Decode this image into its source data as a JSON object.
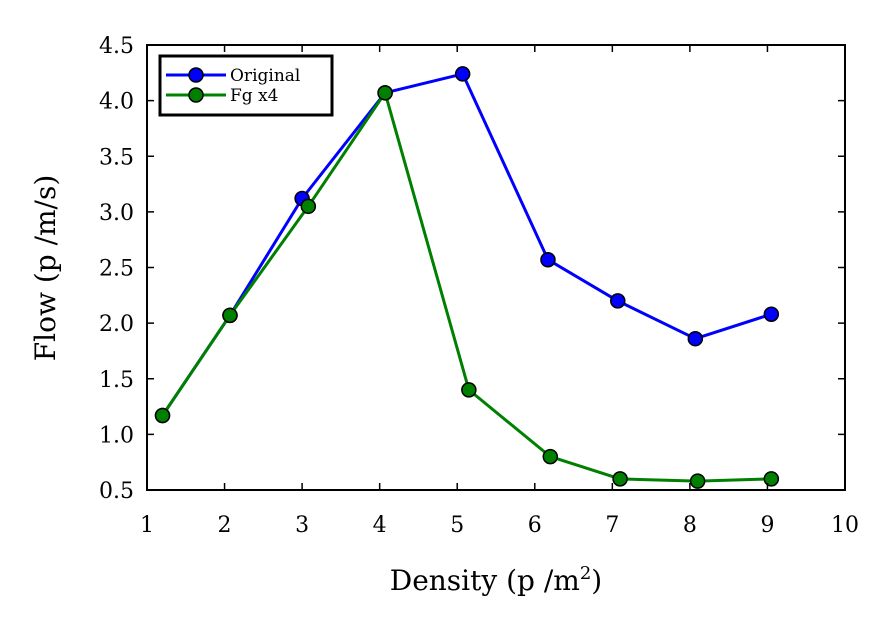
{
  "chart_data": {
    "type": "line",
    "title": "",
    "xlabel": "Density (p /m",
    "xlabel_sup": "2",
    "xlabel_close": ")",
    "ylabel": "Flow (p /m/s)",
    "xlim": [
      1,
      10
    ],
    "ylim": [
      0.5,
      4.5
    ],
    "xticks": [
      "1",
      "2",
      "3",
      "4",
      "5",
      "6",
      "7",
      "8",
      "9",
      "10"
    ],
    "yticks": [
      "0.5",
      "1.0",
      "1.5",
      "2.0",
      "2.5",
      "3.0",
      "3.5",
      "4.0",
      "4.5"
    ],
    "grid": false,
    "legend_position": "top-left",
    "series": [
      {
        "name": "Original",
        "color": "#0000ff",
        "x": [
          1.2,
          2.07,
          3.0,
          4.07,
          5.07,
          6.17,
          7.07,
          8.07,
          9.05
        ],
        "y": [
          1.17,
          2.07,
          3.12,
          4.07,
          4.24,
          2.57,
          2.2,
          1.86,
          2.08
        ]
      },
      {
        "name": "Fg x4",
        "color": "#008000",
        "x": [
          1.2,
          2.07,
          3.08,
          4.07,
          5.15,
          6.2,
          7.1,
          8.1,
          9.05
        ],
        "y": [
          1.17,
          2.07,
          3.05,
          4.07,
          1.4,
          0.8,
          0.6,
          0.58,
          0.6
        ]
      }
    ]
  }
}
